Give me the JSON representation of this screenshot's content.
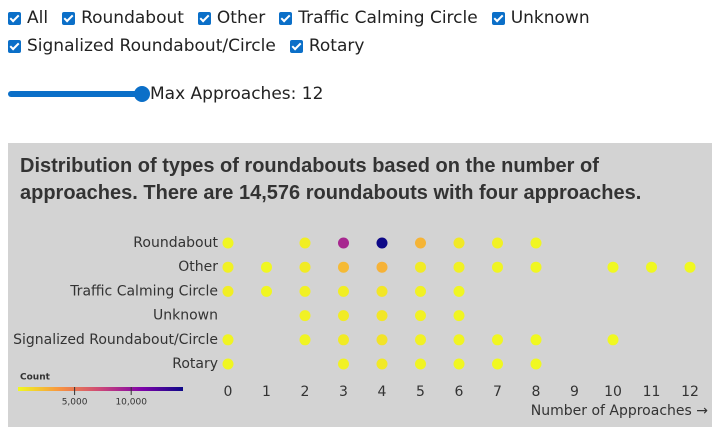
{
  "controls": {
    "filters": [
      "All",
      "Roundabout",
      "Other",
      "Traffic Calming Circle",
      "Unknown",
      "Signalized Roundabout/Circle",
      "Rotary"
    ],
    "slider_label": "Max Approaches: 12"
  },
  "chart_data": {
    "type": "dot-matrix",
    "title": "Distribution of types of roundabouts based on the number of approaches. There are 14,576 roundabouts with four approaches.",
    "x_label": "Number of Approaches →",
    "x": [
      0,
      1,
      2,
      3,
      4,
      5,
      6,
      7,
      8,
      9,
      10,
      11,
      12
    ],
    "xlim": [
      0,
      12
    ],
    "xticks": [
      0,
      1,
      2,
      3,
      4,
      5,
      6,
      7,
      8,
      9,
      10,
      11,
      12
    ],
    "series": [
      {
        "name": "Roundabout",
        "values": [
          100,
          null,
          400,
          9000,
          14576,
          2500,
          600,
          300,
          100,
          null,
          null,
          null,
          null
        ]
      },
      {
        "name": "Other",
        "values": [
          300,
          80,
          500,
          2300,
          2600,
          500,
          300,
          150,
          100,
          null,
          30,
          20,
          20
        ]
      },
      {
        "name": "Traffic Calming Circle",
        "values": [
          400,
          100,
          300,
          400,
          700,
          300,
          100,
          null,
          null,
          null,
          null,
          null,
          null
        ]
      },
      {
        "name": "Unknown",
        "values": [
          null,
          null,
          300,
          500,
          700,
          300,
          150,
          null,
          null,
          null,
          null,
          null,
          null
        ]
      },
      {
        "name": "Signalized Roundabout/Circle",
        "values": [
          200,
          null,
          200,
          500,
          800,
          300,
          200,
          100,
          50,
          null,
          20,
          null,
          null
        ]
      },
      {
        "name": "Rotary",
        "values": [
          100,
          null,
          null,
          300,
          600,
          200,
          100,
          50,
          20,
          null,
          null,
          null,
          null
        ]
      }
    ],
    "color_scale": {
      "title": "Count",
      "colors": [
        "#f0f921",
        "#f89540",
        "#cc4778",
        "#7e03a8",
        "#0d0887"
      ],
      "lim": [
        0,
        14576
      ],
      "ticks": [
        {
          "value": 5000,
          "label": "5,000"
        },
        {
          "value": 10000,
          "label": "10,000"
        }
      ]
    }
  }
}
